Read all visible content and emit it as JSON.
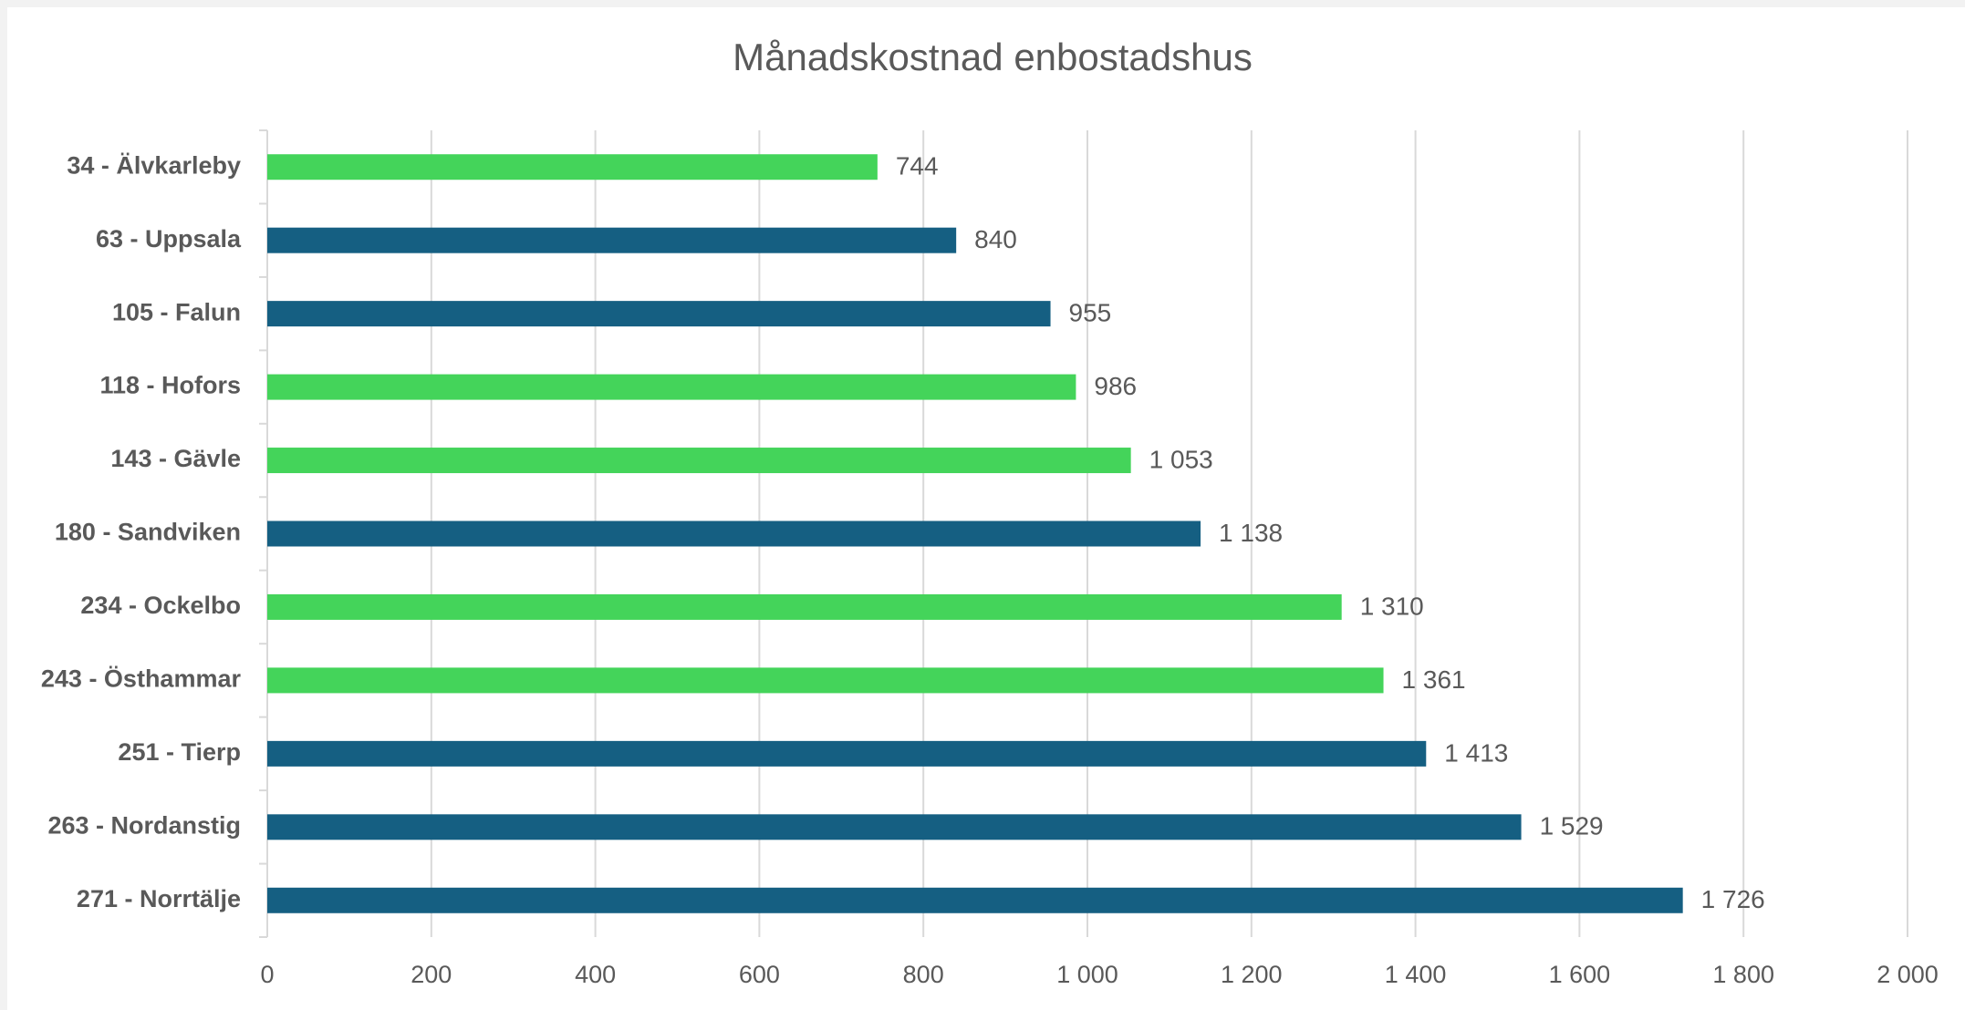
{
  "chart_data": {
    "type": "barh",
    "title": "Månadskostnad enbostadshus",
    "categories": [
      "34 - Älvkarleby",
      "63 - Uppsala",
      "105 - Falun",
      "118 - Hofors",
      "143 - Gävle",
      "180 - Sandviken",
      "234 - Ockelbo",
      "243 - Östhammar",
      "251 - Tierp",
      "263 - Nordanstig",
      "271 - Norrtälje"
    ],
    "values": [
      744,
      840,
      955,
      986,
      1053,
      1138,
      1310,
      1361,
      1413,
      1529,
      1726
    ],
    "value_labels": [
      "744",
      "840",
      "955",
      "986",
      "1 053",
      "1 138",
      "1 310",
      "1 361",
      "1 413",
      "1 529",
      "1 726"
    ],
    "colors": [
      "#44d45a",
      "#155f82",
      "#155f82",
      "#44d45a",
      "#44d45a",
      "#155f82",
      "#44d45a",
      "#44d45a",
      "#155f82",
      "#155f82",
      "#155f82"
    ],
    "xlim": [
      0,
      2000
    ],
    "xticks": [
      0,
      200,
      400,
      600,
      800,
      {
        "value": 1000,
        "label": "1 000"
      },
      {
        "value": 1200,
        "label": "1 200"
      },
      {
        "value": 1400,
        "label": "1 400"
      },
      {
        "value": 1600,
        "label": "1 600"
      },
      {
        "value": 1800,
        "label": "1 800"
      },
      {
        "value": 2000,
        "label": "2 000"
      }
    ],
    "grid": true
  }
}
